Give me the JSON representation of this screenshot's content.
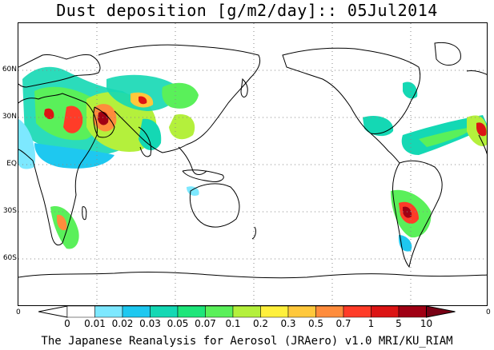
{
  "title": "Dust deposition [g/m2/day]:: 05Jul2014",
  "footer": "The Japanese Reanalysis for Aerosol (JRAero) v1.0 MRI/KU_RIAM",
  "axes": {
    "lat_labels": [
      "60N",
      "30N",
      "EQ",
      "30S",
      "60S"
    ],
    "lon_labels": [
      "0",
      "0"
    ]
  },
  "colorbar": {
    "labels": [
      "0",
      "0.01",
      "0.02",
      "0.03",
      "0.05",
      "0.07",
      "0.1",
      "0.2",
      "0.3",
      "0.5",
      "0.7",
      "1",
      "5",
      "10"
    ],
    "colors": [
      "#ffffff",
      "#ffffff",
      "#7de8ff",
      "#1ec8f0",
      "#14d8b4",
      "#1ee67a",
      "#5af05a",
      "#b4f03c",
      "#fff03c",
      "#ffc83c",
      "#ff8c3c",
      "#ff3c28",
      "#dc1414",
      "#a00014",
      "#780014"
    ]
  },
  "map": {
    "projection": "equirectangular",
    "central_longitude": 0,
    "dust_regions": [
      {
        "name": "sahara-west",
        "level": 0.3
      },
      {
        "name": "arabia",
        "level": 1
      },
      {
        "name": "central-asia",
        "level": 0.5
      },
      {
        "name": "taklamakan",
        "level": 0.2
      },
      {
        "name": "atlantic-plume",
        "level": 0.07
      },
      {
        "name": "caribbean",
        "level": 0.1
      },
      {
        "name": "patagonia",
        "level": 1
      },
      {
        "name": "south-africa",
        "level": 0.3
      },
      {
        "name": "australia",
        "level": 0.05
      },
      {
        "name": "mexico",
        "level": 0.3
      }
    ]
  }
}
